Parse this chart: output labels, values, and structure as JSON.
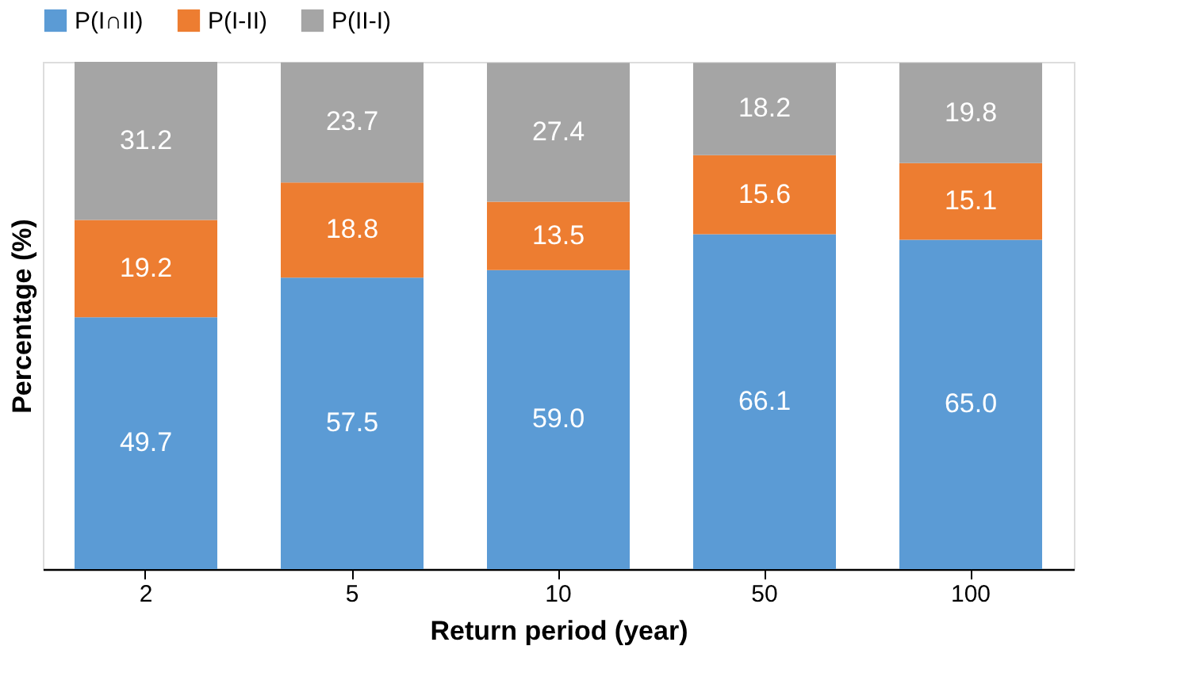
{
  "chart_data": {
    "type": "bar",
    "stacked": true,
    "xlabel": "Return period (year)",
    "ylabel": "Percentage (%)",
    "categories": [
      "2",
      "5",
      "10",
      "50",
      "100"
    ],
    "series": [
      {
        "name": "P(I∩II)",
        "color": "#5b9bd5",
        "values": [
          49.7,
          57.5,
          59.0,
          66.1,
          65.0
        ],
        "value_labels": [
          "49.7",
          "57.5",
          "59.0",
          "66.1",
          "65.0"
        ]
      },
      {
        "name": "P(I-II)",
        "color": "#ed7d31",
        "values": [
          19.2,
          18.8,
          13.5,
          15.6,
          15.1
        ],
        "value_labels": [
          "19.2",
          "18.8",
          "13.5",
          "15.6",
          "15.1"
        ]
      },
      {
        "name": "P(II-I)",
        "color": "#a5a5a5",
        "values": [
          31.2,
          23.7,
          27.4,
          18.2,
          19.8
        ],
        "value_labels": [
          "31.2",
          "23.7",
          "27.4",
          "18.2",
          "19.8"
        ]
      }
    ],
    "legend": "top",
    "grid": false,
    "tick_labels": "x"
  }
}
